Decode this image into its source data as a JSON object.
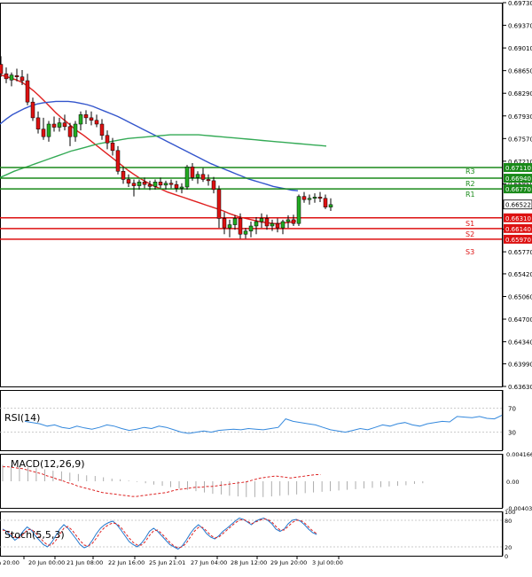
{
  "chart_data": [
    {
      "type": "candlestick",
      "pane": "price",
      "ylim": [
        0.6363,
        0.6973
      ],
      "y_ticks": [
        "0.69730",
        "0.69370",
        "0.69010",
        "0.68650",
        "0.68290",
        "0.67930",
        "0.67570",
        "0.67210",
        "0.66850",
        "0.66490",
        "0.66130",
        "0.65770",
        "0.65420",
        "0.65060",
        "0.64700",
        "0.64340",
        "0.63990",
        "0.63630"
      ],
      "current_price": "0.66522",
      "candles": [
        [
          0.6875,
          0.6888,
          0.6855,
          0.686
        ],
        [
          0.686,
          0.687,
          0.6845,
          0.6852
        ],
        [
          0.685,
          0.6862,
          0.684,
          0.6858
        ],
        [
          0.6857,
          0.6868,
          0.6848,
          0.6855
        ],
        [
          0.6855,
          0.6866,
          0.6842,
          0.6849
        ],
        [
          0.6849,
          0.686,
          0.681,
          0.6815
        ],
        [
          0.6815,
          0.6822,
          0.6785,
          0.679
        ],
        [
          0.679,
          0.68,
          0.6765,
          0.6772
        ],
        [
          0.6772,
          0.679,
          0.6755,
          0.676
        ],
        [
          0.676,
          0.6785,
          0.6752,
          0.678
        ],
        [
          0.678,
          0.6792,
          0.6768,
          0.6775
        ],
        [
          0.6775,
          0.679,
          0.6768,
          0.6782
        ],
        [
          0.6782,
          0.6795,
          0.677,
          0.6776
        ],
        [
          0.6776,
          0.6782,
          0.6745,
          0.676
        ],
        [
          0.676,
          0.6785,
          0.6752,
          0.678
        ],
        [
          0.678,
          0.68,
          0.677,
          0.6795
        ],
        [
          0.6795,
          0.6802,
          0.678,
          0.679
        ],
        [
          0.679,
          0.68,
          0.6778,
          0.6786
        ],
        [
          0.6786,
          0.6795,
          0.6775,
          0.678
        ],
        [
          0.678,
          0.6788,
          0.6755,
          0.6762
        ],
        [
          0.6762,
          0.677,
          0.674,
          0.675
        ],
        [
          0.675,
          0.6758,
          0.673,
          0.6738
        ],
        [
          0.6738,
          0.6745,
          0.67,
          0.6705
        ],
        [
          0.6705,
          0.6712,
          0.6685,
          0.6692
        ],
        [
          0.6692,
          0.67,
          0.668,
          0.6686
        ],
        [
          0.6686,
          0.6692,
          0.6665,
          0.6682
        ],
        [
          0.6682,
          0.6692,
          0.6676,
          0.6688
        ],
        [
          0.6688,
          0.6695,
          0.6678,
          0.6684
        ],
        [
          0.6684,
          0.669,
          0.6675,
          0.6681
        ],
        [
          0.6681,
          0.6692,
          0.6676,
          0.6688
        ],
        [
          0.6688,
          0.6695,
          0.6678,
          0.6683
        ],
        [
          0.6683,
          0.669,
          0.6676,
          0.6686
        ],
        [
          0.6686,
          0.6692,
          0.6678,
          0.6684
        ],
        [
          0.6684,
          0.669,
          0.6672,
          0.6678
        ],
        [
          0.6678,
          0.6686,
          0.667,
          0.668
        ],
        [
          0.668,
          0.6715,
          0.6676,
          0.6712
        ],
        [
          0.6712,
          0.6718,
          0.669,
          0.6695
        ],
        [
          0.6695,
          0.6705,
          0.6685,
          0.67
        ],
        [
          0.67,
          0.671,
          0.6688,
          0.6692
        ],
        [
          0.6692,
          0.67,
          0.6682,
          0.669
        ],
        [
          0.669,
          0.6696,
          0.667,
          0.6676
        ],
        [
          0.6676,
          0.6682,
          0.6615,
          0.663
        ],
        [
          0.663,
          0.664,
          0.6605,
          0.6615
        ],
        [
          0.6615,
          0.6628,
          0.66,
          0.662
        ],
        [
          0.662,
          0.6635,
          0.6612,
          0.663
        ],
        [
          0.663,
          0.6638,
          0.6598,
          0.6605
        ],
        [
          0.6605,
          0.6615,
          0.6598,
          0.661
        ],
        [
          0.661,
          0.6625,
          0.66,
          0.6618
        ],
        [
          0.6618,
          0.6632,
          0.6605,
          0.6625
        ],
        [
          0.6625,
          0.6638,
          0.6615,
          0.663
        ],
        [
          0.663,
          0.6636,
          0.6612,
          0.6618
        ],
        [
          0.6618,
          0.6628,
          0.661,
          0.6622
        ],
        [
          0.6622,
          0.663,
          0.6608,
          0.6615
        ],
        [
          0.6615,
          0.6628,
          0.6605,
          0.6625
        ],
        [
          0.6625,
          0.6635,
          0.6615,
          0.6628
        ],
        [
          0.6628,
          0.6636,
          0.6618,
          0.6622
        ],
        [
          0.6622,
          0.6668,
          0.6618,
          0.6665
        ],
        [
          0.6665,
          0.6672,
          0.6655,
          0.666
        ],
        [
          0.666,
          0.6668,
          0.6652,
          0.6662
        ],
        [
          0.6662,
          0.667,
          0.6655,
          0.6664
        ],
        [
          0.6664,
          0.6672,
          0.6656,
          0.6662
        ],
        [
          0.6662,
          0.6668,
          0.6645,
          0.6648
        ],
        [
          0.6648,
          0.6662,
          0.6642,
          0.6652
        ]
      ],
      "moving_averages": [
        {
          "color": "#e02020",
          "values": [
            0.6858,
            0.6856,
            0.6853,
            0.685,
            0.6846,
            0.684,
            0.6833,
            0.6825,
            0.6816,
            0.6807,
            0.6798,
            0.679,
            0.6783,
            0.6775,
            0.6768,
            0.6762,
            0.6755,
            0.6748,
            0.6741,
            0.6734,
            0.6727,
            0.672,
            0.6713,
            0.6706,
            0.67,
            0.6694,
            0.6689,
            0.6684,
            0.668,
            0.6676,
            0.6672,
            0.6669,
            0.6666,
            0.6663,
            0.666,
            0.6657,
            0.6654,
            0.6651,
            0.6648,
            0.6645,
            0.6642,
            0.6638,
            0.6635,
            0.6632,
            0.663,
            0.6628,
            0.6626,
            0.6624,
            0.6623,
            0.6622,
            0.6622,
            0.6623,
            0.6624,
            0.6626
          ]
        },
        {
          "color": "#3355cc",
          "values": [
            0.678,
            0.6788,
            0.6795,
            0.68,
            0.6805,
            0.6809,
            0.6812,
            0.6814,
            0.6815,
            0.6816,
            0.6816,
            0.6816,
            0.6815,
            0.6813,
            0.6811,
            0.6808,
            0.6804,
            0.68,
            0.6796,
            0.6792,
            0.6787,
            0.6782,
            0.6777,
            0.6772,
            0.6767,
            0.6762,
            0.6757,
            0.6752,
            0.6747,
            0.6742,
            0.6737,
            0.6732,
            0.6727,
            0.6722,
            0.6717,
            0.6713,
            0.6709,
            0.6705,
            0.6701,
            0.6697,
            0.6693,
            0.669,
            0.6687,
            0.6684,
            0.6681,
            0.6679,
            0.6677,
            0.6675,
            0.6674
          ]
        },
        {
          "color": "#33aa55",
          "values": [
            0.6695,
            0.67,
            0.6705,
            0.6709,
            0.6713,
            0.6717,
            0.6721,
            0.6725,
            0.6729,
            0.6733,
            0.6737,
            0.674,
            0.6743,
            0.6746,
            0.6749,
            0.6751,
            0.6753,
            0.6755,
            0.6757,
            0.6758,
            0.6759,
            0.676,
            0.6761,
            0.6762,
            0.6763,
            0.6763,
            0.6763,
            0.6763,
            0.6763,
            0.6762,
            0.6761,
            0.676,
            0.6759,
            0.6758,
            0.6757,
            0.6756,
            0.6755,
            0.6754,
            0.6753,
            0.6752,
            0.6751,
            0.675,
            0.6749,
            0.6748,
            0.6747,
            0.6746,
            0.6745
          ]
        }
      ],
      "levels": [
        {
          "name": "R3",
          "value": 0.6711,
          "label": "0.67110",
          "color": "#1a8a1a"
        },
        {
          "name": "R2",
          "value": 0.6694,
          "label": "0.66940",
          "color": "#1a8a1a"
        },
        {
          "name": "R1",
          "value": 0.6677,
          "label": "0.66770",
          "color": "#1a8a1a"
        },
        {
          "name": "S1",
          "value": 0.6631,
          "label": "0.66310",
          "color": "#dd1111"
        },
        {
          "name": "S2",
          "value": 0.6614,
          "label": "0.66140",
          "color": "#dd1111"
        },
        {
          "name": "S3",
          "value": 0.6597,
          "label": "0.65970",
          "color": "#dd1111"
        }
      ]
    },
    {
      "type": "line",
      "pane": "rsi",
      "title": "RSI(14)",
      "ylim": [
        0,
        100
      ],
      "y_ticks": [
        "70",
        "30"
      ],
      "levels": [
        70,
        30
      ],
      "series": [
        {
          "values": [
            48,
            46,
            44,
            40,
            42,
            38,
            36,
            40,
            37,
            35,
            38,
            42,
            40,
            36,
            33,
            35,
            38,
            36,
            40,
            38,
            34,
            30,
            28,
            30,
            32,
            30,
            33,
            34,
            35,
            34,
            36,
            35,
            34,
            36,
            38,
            52,
            48,
            46,
            44,
            42,
            38,
            34,
            32,
            30,
            33,
            36,
            34,
            38,
            42,
            40,
            44,
            46,
            42,
            40,
            44,
            46,
            48,
            47,
            56,
            55,
            54,
            56,
            53,
            52,
            58
          ]
        }
      ]
    },
    {
      "type": "histogram",
      "pane": "macd",
      "title": "MACD(12,26,9)",
      "ylim": [
        -0.004039,
        0.004166
      ],
      "y_ticks": [
        "0.004166",
        "0.00",
        "-0.004039"
      ],
      "series": [
        {
          "values": [
            0.0025,
            0.0024,
            0.0023,
            0.0021,
            0.002,
            0.0018,
            0.0016,
            0.0015,
            0.0013,
            0.0011,
            0.0009,
            0.0008,
            0.0006,
            0.0004,
            0.0003,
            0.0001,
            -0.0001,
            -0.0003,
            -0.0005,
            -0.0007,
            -0.0009,
            -0.0011,
            -0.0013,
            -0.0015,
            -0.0017,
            -0.0019,
            -0.002,
            -0.0022,
            -0.0023,
            -0.0024,
            -0.0024,
            -0.0024,
            -0.0023,
            -0.0022,
            -0.0021,
            -0.002,
            -0.0018,
            -0.0017,
            -0.0016,
            -0.0015,
            -0.0014,
            -0.0013,
            -0.0012,
            -0.0011,
            -0.001,
            -0.0009,
            -0.0008,
            -0.0007,
            -0.0006,
            -0.0004,
            -0.0003
          ]
        },
        {
          "values": [
            0.0022,
            0.0022,
            0.0021,
            0.002,
            0.0019,
            0.0017,
            0.0015,
            0.0013,
            0.0011,
            0.0008,
            0.0006,
            0.0003,
            0.0001,
            -0.0002,
            -0.0004,
            -0.0007,
            -0.0009,
            -0.0011,
            -0.0013,
            -0.0015,
            -0.0017,
            -0.0018,
            -0.0019,
            -0.002,
            -0.0021,
            -0.0022,
            -0.0023,
            -0.0023,
            -0.0022,
            -0.0021,
            -0.002,
            -0.0019,
            -0.0018,
            -0.0017,
            -0.0015,
            -0.0013,
            -0.0012,
            -0.0011,
            -0.001,
            -0.0009,
            -0.0009,
            -0.0008,
            -0.0008,
            -0.0007,
            -0.0006,
            -0.0005,
            -0.0004,
            -0.0003,
            -0.0002,
            -0.0001,
            0.0001,
            0.0003,
            0.0005,
            0.0006,
            0.0007,
            0.0008,
            0.0007,
            0.0006,
            0.0005,
            0.0006,
            0.0007,
            0.0008,
            0.0009,
            0.001,
            0.001
          ]
        }
      ]
    },
    {
      "type": "line",
      "pane": "stoch",
      "title": "Stoch(5,5,3)",
      "ylim": [
        0,
        100
      ],
      "y_ticks": [
        "100",
        "80",
        "20",
        "0"
      ],
      "levels": [
        80,
        20
      ],
      "series": [
        {
          "color": "#2277cc",
          "values": [
            60,
            55,
            45,
            35,
            42,
            55,
            65,
            58,
            45,
            35,
            25,
            20,
            30,
            45,
            60,
            70,
            62,
            50,
            38,
            25,
            18,
            22,
            35,
            50,
            62,
            70,
            75,
            78,
            70,
            58,
            45,
            32,
            25,
            20,
            28,
            40,
            55,
            62,
            55,
            45,
            35,
            25,
            20,
            15,
            22,
            35,
            50,
            62,
            70,
            62,
            50,
            42,
            38,
            45,
            55,
            62,
            70,
            78,
            85,
            82,
            76,
            70,
            78,
            82,
            85,
            80,
            72,
            60,
            55,
            60,
            72,
            80,
            82,
            78,
            70,
            60,
            52,
            48
          ]
        },
        {
          "color": "#dd2222",
          "values": [
            58,
            56,
            50,
            42,
            40,
            48,
            58,
            60,
            52,
            42,
            32,
            24,
            24,
            34,
            48,
            62,
            66,
            58,
            46,
            34,
            24,
            22,
            28,
            40,
            54,
            64,
            70,
            74,
            72,
            64,
            52,
            40,
            30,
            24,
            24,
            32,
            46,
            56,
            58,
            50,
            40,
            30,
            22,
            18,
            20,
            28,
            42,
            55,
            64,
            64,
            56,
            46,
            40,
            42,
            50,
            58,
            66,
            74,
            80,
            82,
            78,
            72,
            76,
            80,
            83,
            82,
            76,
            66,
            58,
            58,
            66,
            75,
            80,
            80,
            74,
            65,
            56,
            50
          ]
        }
      ]
    }
  ],
  "time_labels": [
    "n 20:00",
    "20 Jun 00:00",
    "21 Jun 08:00",
    "22 Jun 16:00",
    "25 Jun 21:01",
    "27 Jun 04:00",
    "28 Jun 12:00",
    "29 Jun 20:00",
    "3 Jul 00:00"
  ]
}
